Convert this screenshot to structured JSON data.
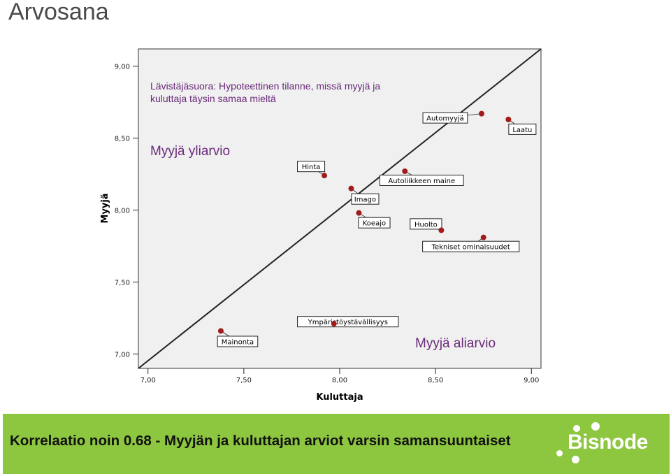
{
  "slide": {
    "title": "Arvosana",
    "footer": "Korrelaatio noin 0.68 -  Myyjän ja kuluttajan arviot varsin samansuuntaiset",
    "logo": "Bisnode",
    "footer_color": "#8dc63f"
  },
  "chart_data": {
    "type": "scatter",
    "xlabel": "Kuluttaja",
    "ylabel": "Myyjä",
    "xlim": [
      6.95,
      9.05
    ],
    "ylim": [
      6.9,
      9.12
    ],
    "xticks": [
      "7,00",
      "7,50",
      "8,00",
      "8,50",
      "9,00"
    ],
    "yticks": [
      "7,00",
      "7,50",
      "8,00",
      "8,50",
      "9,00"
    ],
    "xtick_values": [
      7.0,
      7.5,
      8.0,
      8.5,
      9.0
    ],
    "ytick_values": [
      7.0,
      7.5,
      8.0,
      8.5,
      9.0
    ],
    "background": "#f0f0f0",
    "point_color": "#a01c1c",
    "grid": false,
    "reference_line": {
      "from": [
        6.95,
        6.9
      ],
      "to": [
        9.05,
        9.12
      ]
    },
    "points": [
      {
        "label": "Automyyjä",
        "x": 8.74,
        "y": 8.67
      },
      {
        "label": "Laatu",
        "x": 8.88,
        "y": 8.63
      },
      {
        "label": "Hinta",
        "x": 7.92,
        "y": 8.24
      },
      {
        "label": "Autoliikkeen maine",
        "x": 8.34,
        "y": 8.27
      },
      {
        "label": "Imago",
        "x": 8.06,
        "y": 8.15
      },
      {
        "label": "Koeajo",
        "x": 8.1,
        "y": 7.98
      },
      {
        "label": "Huolto",
        "x": 8.53,
        "y": 7.86
      },
      {
        "label": "Tekniset ominaisuudet",
        "x": 8.75,
        "y": 7.81
      },
      {
        "label": "Mainonta",
        "x": 7.38,
        "y": 7.16
      },
      {
        "label": "Ympäristöystävällisyys",
        "x": 7.97,
        "y": 7.21
      }
    ],
    "annotations": {
      "diagonal_line_1": "Lävistäjäsuora: Hypoteettinen tilanne, missä myyjä ja",
      "diagonal_line_2": "kuluttaja täysin samaa mieltä",
      "over": "Myyjä yliarvio",
      "under": "Myyjä aliarvio"
    }
  }
}
